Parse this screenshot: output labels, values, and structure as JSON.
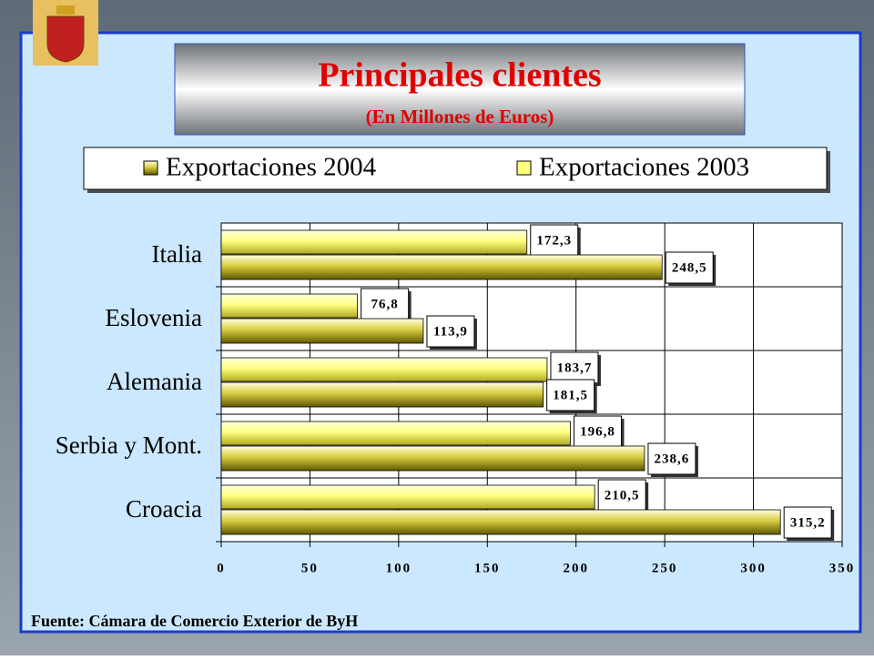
{
  "chart_data": {
    "type": "hbar",
    "title": "Principales clientes",
    "subtitle": "(En Millones de Euros)",
    "categories": [
      "Italia",
      "Eslovenia",
      "Alemania",
      "Serbia y Mont.",
      "Croacia"
    ],
    "series": [
      {
        "name": "Exportaciones 2004",
        "color": "#d8cc40",
        "values": [
          248.5,
          113.9,
          181.5,
          238.6,
          315.2
        ],
        "value_labels": [
          "248,5",
          "113,9",
          "181,5",
          "238,6",
          "315,2"
        ]
      },
      {
        "name": "Exportaciones 2003",
        "color": "#ffff80",
        "values": [
          172.3,
          76.8,
          183.7,
          196.8,
          210.5
        ],
        "value_labels": [
          "172,3",
          "76,8",
          "183,7",
          "196,8",
          "210,5"
        ]
      }
    ],
    "xlim": [
      0,
      350
    ],
    "xticks": [
      0,
      50,
      100,
      150,
      200,
      250,
      300,
      350
    ],
    "grid": true,
    "source": "Fuente: Cámara de Comercio Exterior  de ByH"
  }
}
